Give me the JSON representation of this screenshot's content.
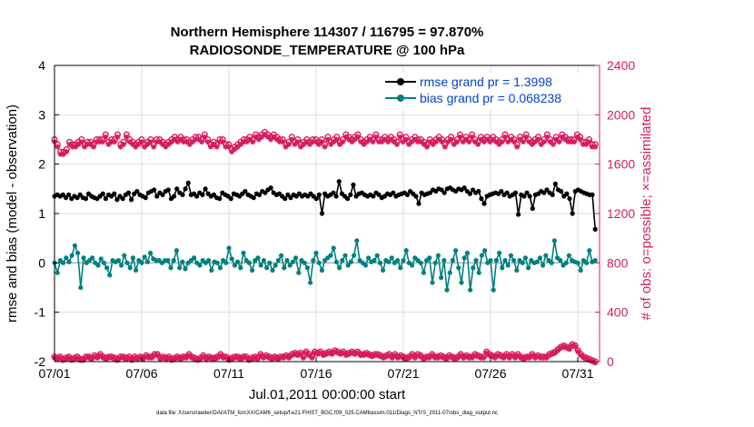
{
  "chart_data": {
    "type": "line",
    "title_line1": "Northern Hemisphere 114307 / 116795 = 97.870%",
    "title_line2": "RADIOSONDE_TEMPERATURE @ 100 hPa",
    "xlabel": "Jul.01,2011 00:00:00 start",
    "ylabel_left": "rmse and bias (model - observation)",
    "ylabel_right": "# of obs: o=possible; ×=assimilated",
    "footer": "data file: /Users/raeder/DAI/ATM_forcXX/CAM6_setup/f.e21.FHIST_BGC.f09_025.CAM6assim.011/Diags_NTrS_2011-07/obs_diag_output.nc",
    "x_ticks": [
      "07/01",
      "07/06",
      "07/11",
      "07/16",
      "07/21",
      "07/26",
      "07/31"
    ],
    "x_tick_days": [
      0,
      5,
      10,
      15,
      20,
      25,
      30
    ],
    "xlim": [
      0,
      31.25
    ],
    "ylim_left": [
      -2,
      4
    ],
    "yticks_left": [
      "-2",
      "-1",
      "0",
      "1",
      "2",
      "3",
      "4"
    ],
    "ylim_right": [
      0,
      2400
    ],
    "yticks_right": [
      "0",
      "400",
      "800",
      "1200",
      "1600",
      "2000",
      "2400"
    ],
    "zero_line": 0,
    "legend": {
      "rmse": "rmse grand pr = 1.3998",
      "bias": "bias grand pr = 0.068238"
    },
    "colors": {
      "rmse": "#000000",
      "bias": "#008080",
      "obs": "#d81b60",
      "right_axis": "#d81b60",
      "legend_text": "#0044cc",
      "grid": "#dedede"
    },
    "series": [
      {
        "name": "rmse",
        "values": [
          1.35,
          1.38,
          1.35,
          1.38,
          1.32,
          1.38,
          1.3,
          1.35,
          1.32,
          1.38,
          1.32,
          1.3,
          1.4,
          1.35,
          1.32,
          1.3,
          1.35,
          1.4,
          1.3,
          1.38,
          1.35,
          1.4,
          1.28,
          1.35,
          1.3,
          1.38,
          1.42,
          1.28,
          1.4,
          1.45,
          1.38,
          1.35,
          1.32,
          1.42,
          1.45,
          1.48,
          1.35,
          1.42,
          1.38,
          1.45,
          1.48,
          1.3,
          1.35,
          1.5,
          1.42,
          1.38,
          1.5,
          1.62,
          1.38,
          1.4,
          1.35,
          1.42,
          1.38,
          1.5,
          1.4,
          1.35,
          1.38,
          1.32,
          1.3,
          1.42,
          1.38,
          1.35,
          1.3,
          1.4,
          1.38,
          1.35,
          1.4,
          1.45,
          1.38,
          1.35,
          1.32,
          1.4,
          1.38,
          1.45,
          1.42,
          1.48,
          1.52,
          1.42,
          1.38,
          1.4,
          1.35,
          1.3,
          1.38,
          1.32,
          1.38,
          1.35,
          1.4,
          1.35,
          1.38,
          1.35,
          1.4,
          1.35,
          1.3,
          1.38,
          1.0,
          1.4,
          1.35,
          1.38,
          1.42,
          1.35,
          1.65,
          1.4,
          1.35,
          1.3,
          1.38,
          1.58,
          1.35,
          1.4,
          1.42,
          1.38,
          1.35,
          1.38,
          1.35,
          1.42,
          1.38,
          1.32,
          1.35,
          1.4,
          1.38,
          1.42,
          1.35,
          1.38,
          1.4,
          1.42,
          1.38,
          1.45,
          1.4,
          1.35,
          1.2,
          1.42,
          1.38,
          1.4,
          1.42,
          1.48,
          1.45,
          1.5,
          1.48,
          1.42,
          1.5,
          1.52,
          1.48,
          1.45,
          1.5,
          1.48,
          1.52,
          1.45,
          1.4,
          1.48,
          1.42,
          1.45,
          1.3,
          1.2,
          1.35,
          1.38,
          1.4,
          1.42,
          1.4,
          1.45,
          1.38,
          1.42,
          1.35,
          1.38,
          1.42,
          0.98,
          1.38,
          1.35,
          1.42,
          1.35,
          1.1,
          1.38,
          1.4,
          1.45,
          1.42,
          1.48,
          1.42,
          1.38,
          1.6,
          1.48,
          1.45,
          1.35,
          1.4,
          1.3,
          1.0,
          1.45,
          1.48,
          1.45,
          1.42,
          1.4,
          1.38,
          1.38,
          0.68
        ]
      },
      {
        "name": "bias",
        "values": [
          0.0,
          -0.2,
          0.05,
          0.0,
          0.1,
          0.02,
          0.15,
          0.35,
          0.2,
          -0.5,
          0.1,
          0.0,
          0.05,
          0.1,
          0.0,
          -0.05,
          0.08,
          0.0,
          -0.1,
          -0.25,
          0.05,
          0.02,
          0.05,
          -0.05,
          0.15,
          0.0,
          -0.1,
          0.1,
          -0.15,
          0.05,
          0.0,
          0.12,
          0.02,
          0.2,
          0.08,
          0.05,
          0.05,
          0.0,
          0.05,
          0.05,
          -0.1,
          0.05,
          0.25,
          -0.1,
          0.02,
          -0.12,
          0.0,
          0.05,
          0.1,
          0.0,
          -0.05,
          0.05,
          0.0,
          0.05,
          -0.15,
          0.02,
          0.0,
          -0.1,
          0.05,
          0.0,
          0.3,
          0.08,
          -0.05,
          0.02,
          -0.1,
          0.2,
          0.05,
          0.0,
          -0.15,
          0.05,
          0.1,
          -0.05,
          0.05,
          -0.1,
          0.0,
          -0.15,
          -0.05,
          0.05,
          0.15,
          -0.1,
          0.05,
          -0.05,
          0.02,
          0.1,
          -0.2,
          0.05,
          0.0,
          -0.1,
          -0.4,
          0.05,
          0.2,
          0.0,
          -0.15,
          0.05,
          0.1,
          0.15,
          0.3,
          0.02,
          -0.1,
          0.05,
          0.15,
          -0.05,
          0.02,
          0.15,
          0.45,
          0.05,
          0.0,
          -0.05,
          0.1,
          0.02,
          0.05,
          0.15,
          0.0,
          -0.15,
          0.05,
          0.02,
          0.1,
          0.0,
          0.05,
          -0.1,
          0.05,
          0.25,
          0.0,
          -0.05,
          0.1,
          0.05,
          0.0,
          -0.2,
          0.05,
          0.1,
          -0.4,
          0.0,
          0.15,
          -0.3,
          0.05,
          -0.55,
          -0.2,
          0.05,
          0.25,
          -0.1,
          -0.4,
          0.1,
          0.2,
          -0.55,
          -0.1,
          0.05,
          -0.2,
          0.15,
          0.25,
          0.0,
          0.05,
          -0.55,
          0.05,
          0.2,
          -0.1,
          0.05,
          -0.05,
          0.15,
          0.05,
          -0.15,
          0.05,
          0.0,
          0.1,
          -0.1,
          0.05,
          0.0,
          0.02,
          0.1,
          -0.05,
          0.15,
          0.05,
          0.0,
          0.45,
          0.1,
          0.05,
          -0.05,
          0.0,
          0.15,
          0.05,
          0.02,
          0.0,
          -0.15,
          0.05,
          0.0,
          0.25,
          0.02,
          0.05
        ]
      },
      {
        "name": "obs_possible",
        "values": [
          1800,
          1760,
          1700,
          1700,
          1720,
          1780,
          1760,
          1760,
          1780,
          1800,
          1760,
          1780,
          1780,
          1760,
          1800,
          1800,
          1800,
          1840,
          1780,
          1800,
          1800,
          1840,
          1760,
          1780,
          1840,
          1800,
          1780,
          1760,
          1780,
          1800,
          1760,
          1780,
          1800,
          1760,
          1800,
          1800,
          1780,
          1760,
          1780,
          1800,
          1820,
          1800,
          1820,
          1800,
          1800,
          1780,
          1800,
          1820,
          1820,
          1800,
          1840,
          1800,
          1760,
          1780,
          1760,
          1800,
          1800,
          1760,
          1760,
          1720,
          1740,
          1760,
          1780,
          1800,
          1800,
          1820,
          1800,
          1840,
          1820,
          1840,
          1860,
          1840,
          1820,
          1840,
          1820,
          1800,
          1800,
          1760,
          1780,
          1820,
          1780,
          1800,
          1760,
          1780,
          1800,
          1780,
          1800,
          1800,
          1780,
          1800,
          1760,
          1820,
          1780,
          1800,
          1820,
          1780,
          1800,
          1840,
          1820,
          1800,
          1820,
          1840,
          1800,
          1780,
          1800,
          1820,
          1800,
          1840,
          1800,
          1800,
          1820,
          1800,
          1820,
          1800,
          1780,
          1840,
          1800,
          1820,
          1780,
          1800,
          1820,
          1800,
          1800,
          1780,
          1760,
          1800,
          1780,
          1800,
          1820,
          1800,
          1760,
          1800,
          1820,
          1780,
          1800,
          1840,
          1800,
          1820,
          1800,
          1840,
          1800,
          1780,
          1820,
          1800,
          1820,
          1800,
          1820,
          1800,
          1780,
          1800,
          1840,
          1800,
          1820,
          1800,
          1760,
          1820,
          1800,
          1840,
          1800,
          1780,
          1800,
          1820,
          1780,
          1800,
          1840,
          1800,
          1780,
          1820,
          1800,
          1840,
          1820,
          1800,
          1800,
          1800,
          1840,
          1820,
          1780,
          1780,
          1800,
          1760,
          1760
        ]
      },
      {
        "name": "obs_assimilated",
        "values": [
          1780,
          1740,
          1680,
          1680,
          1700,
          1760,
          1740,
          1740,
          1760,
          1780,
          1740,
          1760,
          1760,
          1740,
          1780,
          1780,
          1780,
          1820,
          1760,
          1780,
          1780,
          1820,
          1740,
          1760,
          1820,
          1780,
          1760,
          1740,
          1760,
          1780,
          1740,
          1760,
          1780,
          1740,
          1780,
          1780,
          1760,
          1740,
          1760,
          1780,
          1800,
          1780,
          1800,
          1780,
          1780,
          1760,
          1780,
          1800,
          1800,
          1780,
          1820,
          1780,
          1740,
          1760,
          1740,
          1780,
          1780,
          1740,
          1740,
          1700,
          1720,
          1740,
          1760,
          1780,
          1780,
          1800,
          1780,
          1820,
          1800,
          1820,
          1840,
          1820,
          1800,
          1820,
          1800,
          1780,
          1780,
          1740,
          1760,
          1800,
          1760,
          1780,
          1740,
          1760,
          1780,
          1760,
          1780,
          1780,
          1760,
          1780,
          1740,
          1800,
          1760,
          1780,
          1800,
          1760,
          1780,
          1820,
          1800,
          1780,
          1800,
          1820,
          1780,
          1760,
          1780,
          1800,
          1780,
          1820,
          1780,
          1780,
          1800,
          1780,
          1800,
          1780,
          1760,
          1820,
          1780,
          1800,
          1760,
          1780,
          1800,
          1780,
          1780,
          1760,
          1740,
          1780,
          1760,
          1780,
          1800,
          1780,
          1740,
          1780,
          1800,
          1760,
          1780,
          1820,
          1780,
          1800,
          1780,
          1820,
          1780,
          1760,
          1800,
          1780,
          1800,
          1780,
          1800,
          1780,
          1760,
          1780,
          1820,
          1780,
          1800,
          1780,
          1740,
          1800,
          1780,
          1820,
          1780,
          1760,
          1780,
          1800,
          1760,
          1780,
          1820,
          1780,
          1760,
          1800,
          1780,
          1820,
          1800,
          1780,
          1780,
          1780,
          1820,
          1800,
          1760,
          1760,
          1780,
          1740,
          1740
        ]
      },
      {
        "name": "obs_low_possible",
        "values": [
          40,
          30,
          40,
          20,
          30,
          40,
          20,
          30,
          40,
          20,
          20,
          40,
          40,
          30,
          50,
          40,
          60,
          40,
          30,
          40,
          40,
          30,
          20,
          40,
          40,
          30,
          40,
          20,
          40,
          30,
          40,
          30,
          50,
          40,
          40,
          60,
          60,
          30,
          40,
          30,
          40,
          20,
          30,
          40,
          30,
          40,
          40,
          60,
          40,
          30,
          20,
          30,
          50,
          30,
          40,
          30,
          30,
          40,
          60,
          40,
          40,
          20,
          30,
          40,
          40,
          30,
          40,
          40,
          20,
          30,
          40,
          30,
          60,
          40,
          50,
          40,
          30,
          40,
          30,
          40,
          40,
          50,
          40,
          60,
          70,
          60,
          70,
          40,
          80,
          60,
          40,
          80,
          70,
          80,
          60,
          70,
          80,
          70,
          90,
          80,
          70,
          80,
          60,
          70,
          80,
          70,
          80,
          60,
          60,
          70,
          60,
          50,
          60,
          60,
          50,
          40,
          50,
          60,
          40,
          60,
          40,
          50,
          40,
          30,
          40,
          60,
          40,
          60,
          50,
          30,
          40,
          40,
          60,
          40,
          40,
          50,
          40,
          30,
          50,
          40,
          30,
          40,
          60,
          40,
          50,
          40,
          40,
          60,
          50,
          40,
          40,
          80,
          60,
          50,
          40,
          60,
          50,
          40,
          60,
          40,
          60,
          40,
          60,
          40,
          30,
          40,
          40,
          60,
          40,
          50,
          40,
          40,
          40,
          60,
          70,
          80,
          100,
          120,
          130,
          120,
          110,
          140,
          130,
          90,
          60,
          40,
          30,
          20,
          10,
          0
        ]
      },
      {
        "name": "obs_low_assimilated",
        "values": [
          30,
          20,
          30,
          10,
          20,
          30,
          10,
          20,
          30,
          10,
          10,
          30,
          30,
          20,
          40,
          30,
          50,
          30,
          20,
          30,
          30,
          20,
          10,
          30,
          30,
          20,
          30,
          10,
          30,
          20,
          30,
          20,
          40,
          30,
          30,
          50,
          50,
          20,
          30,
          20,
          30,
          10,
          20,
          30,
          20,
          30,
          30,
          50,
          30,
          20,
          10,
          20,
          40,
          20,
          30,
          20,
          20,
          30,
          50,
          30,
          30,
          10,
          20,
          30,
          30,
          20,
          30,
          30,
          10,
          20,
          30,
          20,
          50,
          30,
          40,
          30,
          20,
          30,
          20,
          30,
          30,
          40,
          30,
          50,
          60,
          50,
          60,
          30,
          70,
          50,
          30,
          70,
          60,
          70,
          50,
          60,
          70,
          60,
          80,
          70,
          60,
          70,
          50,
          60,
          70,
          60,
          70,
          50,
          50,
          60,
          50,
          40,
          50,
          50,
          40,
          30,
          40,
          50,
          30,
          50,
          30,
          40,
          30,
          20,
          30,
          50,
          30,
          50,
          40,
          20,
          30,
          30,
          50,
          30,
          30,
          40,
          30,
          20,
          40,
          30,
          20,
          30,
          50,
          30,
          40,
          30,
          30,
          50,
          40,
          30,
          30,
          70,
          50,
          40,
          30,
          50,
          40,
          30,
          50,
          30,
          50,
          30,
          50,
          30,
          20,
          30,
          30,
          50,
          30,
          40,
          30,
          30,
          30,
          50,
          60,
          70,
          90,
          110,
          120,
          110,
          100,
          130,
          120,
          80,
          50,
          30,
          20,
          10,
          0,
          -10
        ]
      }
    ]
  }
}
